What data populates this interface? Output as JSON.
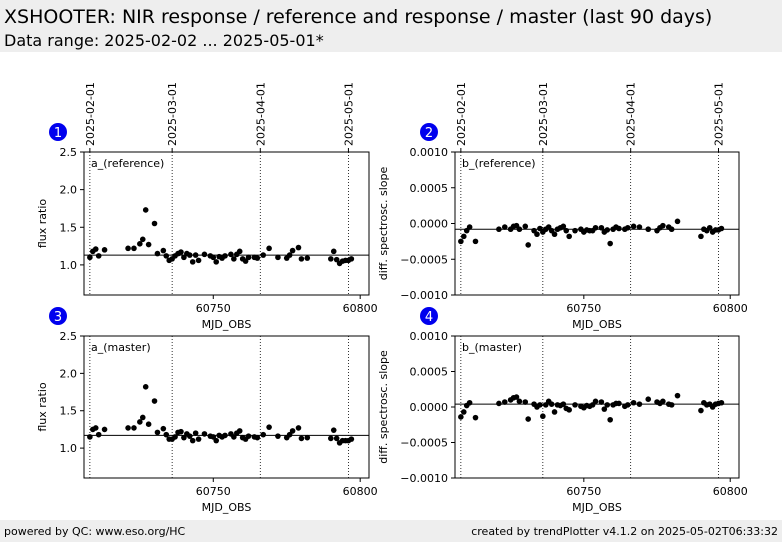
{
  "header": {
    "title": "XSHOOTER: NIR response / reference and response / master (last 90 days)",
    "subtitle": "Data range: 2025-02-02 ... 2025-05-01*"
  },
  "footer": {
    "left": "powered by QC: www.eso.org/HC",
    "right": "created by trendPlotter v4.1.2 on 2025-05-02T06:33:32"
  },
  "colors": {
    "badge": "#0000ee",
    "marker": "#000000",
    "header_bg": "#eeeeee"
  },
  "chart_data": [
    {
      "type": "scatter",
      "panel_number": "1",
      "label": "a_(reference)",
      "xlabel": "MJD_OBS",
      "ylabel": "flux ratio",
      "xlim": [
        60706,
        60803
      ],
      "ylim": [
        0.6,
        2.5
      ],
      "yticks": [
        1.0,
        1.5,
        2.0,
        2.5
      ],
      "yticklabels": [
        "1.0",
        "1.5",
        "2.0",
        "2.5"
      ],
      "xticks": [
        60750,
        60800
      ],
      "xticklabels": [
        "60750",
        "60800"
      ],
      "reference_line": 1.13,
      "date_markers": [
        {
          "x": 60708,
          "label": "2025-02-01"
        },
        {
          "x": 60736,
          "label": "2025-03-01"
        },
        {
          "x": 60766,
          "label": "2025-04-01"
        },
        {
          "x": 60796,
          "label": "2025-05-01"
        }
      ],
      "x": [
        60708,
        60709,
        60710,
        60711,
        60713,
        60721,
        60723,
        60725,
        60726,
        60727,
        60728,
        60730,
        60731,
        60733,
        60734,
        60735,
        60736,
        60737,
        60738,
        60739,
        60740,
        60741,
        60742,
        60743,
        60744,
        60745,
        60747,
        60749,
        60750,
        60751,
        60752,
        60753,
        60754,
        60756,
        60757,
        60758,
        60759,
        60760,
        60761,
        60762,
        60764,
        60765,
        60767,
        60769,
        60772,
        60775,
        60776,
        60777,
        60779,
        60780,
        60782,
        60790,
        60791,
        60792,
        60793,
        60794,
        60795,
        60796,
        60797
      ],
      "y": [
        1.1,
        1.18,
        1.21,
        1.12,
        1.2,
        1.22,
        1.22,
        1.28,
        1.34,
        1.73,
        1.27,
        1.55,
        1.15,
        1.19,
        1.12,
        1.06,
        1.08,
        1.12,
        1.15,
        1.17,
        1.1,
        1.15,
        1.13,
        1.04,
        1.13,
        1.06,
        1.14,
        1.12,
        1.1,
        1.04,
        1.11,
        1.09,
        1.12,
        1.14,
        1.08,
        1.14,
        1.18,
        1.08,
        1.05,
        1.1,
        1.1,
        1.09,
        1.13,
        1.22,
        1.1,
        1.09,
        1.13,
        1.19,
        1.23,
        1.08,
        1.09,
        1.08,
        1.18,
        1.07,
        1.02,
        1.05,
        1.06,
        1.06,
        1.08
      ]
    },
    {
      "type": "scatter",
      "panel_number": "2",
      "label": "b_(reference)",
      "xlabel": "MJD_OBS",
      "ylabel": "diff. spectrosc. slope",
      "xlim": [
        60706,
        60803
      ],
      "ylim": [
        -0.001,
        0.001
      ],
      "yticks": [
        -0.001,
        -0.0005,
        0.0,
        0.0005,
        0.001
      ],
      "yticklabels": [
        "−0.0010",
        "−0.0005",
        "0.0000",
        "0.0005",
        "0.0010"
      ],
      "xticks": [
        60750,
        60800
      ],
      "xticklabels": [
        "60750",
        "60800"
      ],
      "reference_line": -8e-05,
      "date_markers": [
        {
          "x": 60708,
          "label": "2025-02-01"
        },
        {
          "x": 60736,
          "label": "2025-03-01"
        },
        {
          "x": 60766,
          "label": "2025-04-01"
        },
        {
          "x": 60796,
          "label": "2025-05-01"
        }
      ],
      "x": [
        60708,
        60709,
        60710,
        60711,
        60713,
        60721,
        60723,
        60725,
        60726,
        60727,
        60728,
        60730,
        60731,
        60733,
        60734,
        60735,
        60736,
        60737,
        60738,
        60739,
        60740,
        60741,
        60742,
        60743,
        60744,
        60745,
        60747,
        60749,
        60750,
        60751,
        60752,
        60753,
        60754,
        60756,
        60757,
        60758,
        60759,
        60760,
        60761,
        60762,
        60764,
        60765,
        60767,
        60769,
        60772,
        60775,
        60776,
        60777,
        60779,
        60780,
        60782,
        60790,
        60791,
        60792,
        60793,
        60794,
        60795,
        60796,
        60797
      ],
      "y": [
        -0.00025,
        -0.00018,
        -0.0001,
        -5e-05,
        -0.00025,
        -8e-05,
        -5e-05,
        -8e-05,
        -4e-05,
        -3e-05,
        -8e-05,
        -4e-05,
        -0.0003,
        -0.0001,
        -0.00015,
        -7e-05,
        -0.00012,
        -8e-05,
        -5e-05,
        -0.0001,
        -0.00015,
        -8e-05,
        -6e-05,
        -4e-05,
        -0.0001,
        -0.00018,
        -0.0001,
        -8e-05,
        -0.00012,
        -9e-05,
        -0.0001,
        -0.0001,
        -6e-05,
        -6e-05,
        -0.00012,
        -9e-05,
        -0.00028,
        -8e-05,
        -5e-05,
        -7e-05,
        -8e-05,
        -6e-05,
        -4e-05,
        -5e-05,
        -8e-05,
        -0.0001,
        -6e-05,
        -3e-05,
        -5e-05,
        -8e-05,
        3e-05,
        -0.00018,
        -8e-05,
        -0.0001,
        -6e-05,
        -0.00012,
        -9e-05,
        -9e-05,
        -7e-05
      ]
    },
    {
      "type": "scatter",
      "panel_number": "3",
      "label": "a_(master)",
      "xlabel": "MJD_OBS",
      "ylabel": "flux ratio",
      "xlim": [
        60706,
        60803
      ],
      "ylim": [
        0.6,
        2.5
      ],
      "yticks": [
        1.0,
        1.5,
        2.0,
        2.5
      ],
      "yticklabels": [
        "1.0",
        "1.5",
        "2.0",
        "2.5"
      ],
      "xticks": [
        60750,
        60800
      ],
      "xticklabels": [
        "60750",
        "60800"
      ],
      "reference_line": 1.17,
      "date_markers": [
        {
          "x": 60708,
          "label": "2025-02-01"
        },
        {
          "x": 60736,
          "label": "2025-03-01"
        },
        {
          "x": 60766,
          "label": "2025-04-01"
        },
        {
          "x": 60796,
          "label": "2025-05-01"
        }
      ],
      "x": [
        60708,
        60709,
        60710,
        60711,
        60713,
        60721,
        60723,
        60725,
        60726,
        60727,
        60728,
        60730,
        60731,
        60733,
        60734,
        60735,
        60736,
        60737,
        60738,
        60739,
        60740,
        60741,
        60742,
        60743,
        60744,
        60745,
        60747,
        60749,
        60750,
        60751,
        60752,
        60753,
        60754,
        60756,
        60757,
        60758,
        60759,
        60760,
        60761,
        60762,
        60764,
        60765,
        60767,
        60769,
        60772,
        60775,
        60776,
        60777,
        60779,
        60780,
        60782,
        60790,
        60791,
        60792,
        60793,
        60794,
        60795,
        60796,
        60797
      ],
      "y": [
        1.15,
        1.25,
        1.27,
        1.18,
        1.25,
        1.27,
        1.27,
        1.35,
        1.41,
        1.82,
        1.32,
        1.63,
        1.21,
        1.26,
        1.18,
        1.12,
        1.12,
        1.15,
        1.21,
        1.22,
        1.14,
        1.19,
        1.16,
        1.1,
        1.2,
        1.12,
        1.19,
        1.16,
        1.15,
        1.1,
        1.17,
        1.15,
        1.17,
        1.19,
        1.15,
        1.2,
        1.23,
        1.14,
        1.12,
        1.16,
        1.15,
        1.14,
        1.18,
        1.28,
        1.16,
        1.14,
        1.18,
        1.23,
        1.27,
        1.13,
        1.14,
        1.13,
        1.24,
        1.13,
        1.07,
        1.1,
        1.1,
        1.1,
        1.12
      ]
    },
    {
      "type": "scatter",
      "panel_number": "4",
      "label": "b_(master)",
      "xlabel": "MJD_OBS",
      "ylabel": "diff. spectrosc. slope",
      "xlim": [
        60706,
        60803
      ],
      "ylim": [
        -0.001,
        0.001
      ],
      "yticks": [
        -0.001,
        -0.0005,
        0.0,
        0.0005,
        0.001
      ],
      "yticklabels": [
        "−0.0010",
        "−0.0005",
        "0.0000",
        "0.0005",
        "0.0010"
      ],
      "xticks": [
        60750,
        60800
      ],
      "xticklabels": [
        "60750",
        "60800"
      ],
      "reference_line": 4e-05,
      "date_markers": [
        {
          "x": 60708,
          "label": "2025-02-01"
        },
        {
          "x": 60736,
          "label": "2025-03-01"
        },
        {
          "x": 60766,
          "label": "2025-04-01"
        },
        {
          "x": 60796,
          "label": "2025-05-01"
        }
      ],
      "x": [
        60708,
        60709,
        60710,
        60711,
        60713,
        60721,
        60723,
        60725,
        60726,
        60727,
        60728,
        60730,
        60731,
        60733,
        60734,
        60735,
        60736,
        60737,
        60738,
        60739,
        60740,
        60741,
        60742,
        60743,
        60744,
        60745,
        60747,
        60749,
        60750,
        60751,
        60752,
        60753,
        60754,
        60756,
        60757,
        60758,
        60759,
        60760,
        60761,
        60762,
        60764,
        60765,
        60767,
        60769,
        60772,
        60775,
        60776,
        60777,
        60779,
        60780,
        60782,
        60790,
        60791,
        60792,
        60793,
        60794,
        60795,
        60796,
        60797
      ],
      "y": [
        -0.00014,
        -7e-05,
        2e-05,
        6e-05,
        -0.00015,
        5e-05,
        7e-05,
        0.0001,
        0.00013,
        0.00014,
        8e-05,
        7e-05,
        -0.00017,
        4e-05,
        0.0,
        3e-05,
        -0.00013,
        3e-05,
        8e-05,
        4e-05,
        -7e-05,
        3e-05,
        2e-05,
        4e-05,
        -2e-05,
        -4e-05,
        3e-05,
        1e-05,
        -1e-05,
        2e-05,
        1e-05,
        3e-05,
        8e-05,
        7e-05,
        -3e-05,
        3e-05,
        -0.00018,
        3e-05,
        5e-05,
        5e-05,
        1e-05,
        3e-05,
        6e-05,
        4e-05,
        0.00011,
        7e-05,
        5e-05,
        8e-05,
        4e-05,
        3e-05,
        0.00016,
        -5e-05,
        6e-05,
        3e-05,
        4e-05,
        0.0,
        4e-05,
        5e-05,
        6e-05
      ]
    }
  ]
}
